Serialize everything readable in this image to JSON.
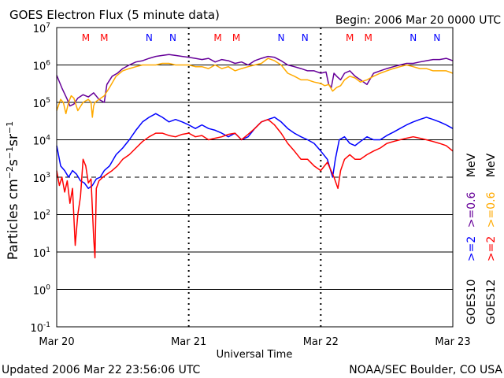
{
  "header": {
    "title": "GOES Electron Flux (5 minute data)",
    "begin": "Begin: 2006 Mar 20 0000 UTC"
  },
  "footer": {
    "updated": "Updated 2006 Mar 22 23:56:06 UTC",
    "credit": "NOAA/SEC Boulder, CO USA"
  },
  "colors": {
    "goes10_2mev": "#0000ff",
    "goes12_2mev": "#ff0000",
    "goes10_06mev": "#660099",
    "goes12_06mev": "#ffaa00",
    "marker_m": "#ff0000",
    "marker_n": "#0000ff"
  },
  "legend": {
    "goes10": {
      "prefix": "GOES10",
      "e2": ">=2",
      "e06": ">=0.6",
      "unit": "MeV"
    },
    "goes12": {
      "prefix": "GOES12",
      "e2": ">=2",
      "e06": ">=0.6",
      "unit": "MeV"
    }
  },
  "markers": [
    {
      "label": "M",
      "day": 0.22
    },
    {
      "label": "M",
      "day": 0.36
    },
    {
      "label": "N",
      "day": 0.7
    },
    {
      "label": "N",
      "day": 0.88
    },
    {
      "label": "M",
      "day": 1.22
    },
    {
      "label": "M",
      "day": 1.36
    },
    {
      "label": "N",
      "day": 1.7
    },
    {
      "label": "N",
      "day": 1.88
    },
    {
      "label": "M",
      "day": 2.22
    },
    {
      "label": "M",
      "day": 2.36
    },
    {
      "label": "N",
      "day": 2.7
    },
    {
      "label": "N",
      "day": 2.88
    }
  ],
  "chart_data": {
    "type": "line",
    "xlabel": "Universal Time",
    "ylabel": "Particles cm-2s-1sr-1",
    "x_unit": "days since 2006 Mar 20 0000 UTC",
    "xlim": [
      0,
      3
    ],
    "ylim_log10": [
      -1,
      7
    ],
    "y_log_scale": true,
    "x_ticks": [
      {
        "label": "Mar 20",
        "day": 0
      },
      {
        "label": "Mar 21",
        "day": 1
      },
      {
        "label": "Mar 22",
        "day": 2
      },
      {
        "label": "Mar 23",
        "day": 3
      }
    ],
    "y_ticks": [
      {
        "base": "10",
        "exp": "-1",
        "log": -1
      },
      {
        "base": "10",
        "exp": "0",
        "log": 0
      },
      {
        "base": "10",
        "exp": "1",
        "log": 1
      },
      {
        "base": "10",
        "exp": "2",
        "log": 2
      },
      {
        "base": "10",
        "exp": "3",
        "log": 3
      },
      {
        "base": "10",
        "exp": "4",
        "log": 4
      },
      {
        "base": "10",
        "exp": "5",
        "log": 5
      },
      {
        "base": "10",
        "exp": "6",
        "log": 6
      },
      {
        "base": "10",
        "exp": "7",
        "log": 7
      }
    ],
    "threshold_log": 3,
    "series": [
      {
        "name": "GOES10 >=0.6 MeV",
        "color": "#660099",
        "x": [
          0,
          0.04,
          0.08,
          0.1,
          0.13,
          0.16,
          0.2,
          0.24,
          0.28,
          0.32,
          0.36,
          0.38,
          0.42,
          0.46,
          0.5,
          0.55,
          0.6,
          0.65,
          0.7,
          0.75,
          0.8,
          0.85,
          0.9,
          0.95,
          1.0,
          1.05,
          1.1,
          1.15,
          1.2,
          1.25,
          1.3,
          1.35,
          1.4,
          1.45,
          1.5,
          1.55,
          1.6,
          1.65,
          1.7,
          1.75,
          1.8,
          1.85,
          1.9,
          1.95,
          2.0,
          2.04,
          2.06,
          2.08,
          2.1,
          2.12,
          2.15,
          2.18,
          2.22,
          2.26,
          2.3,
          2.35,
          2.4,
          2.45,
          2.5,
          2.55,
          2.6,
          2.65,
          2.7,
          2.75,
          2.8,
          2.85,
          2.9,
          2.95,
          3.0
        ],
        "y": [
          530000.0,
          240000.0,
          120000.0,
          80000.0,
          90000.0,
          130000.0,
          160000.0,
          140000.0,
          180000.0,
          120000.0,
          100000.0,
          300000.0,
          500000.0,
          600000.0,
          800000.0,
          1000000.0,
          1200000.0,
          1300000.0,
          1500000.0,
          1700000.0,
          1800000.0,
          1900000.0,
          1800000.0,
          1700000.0,
          1600000.0,
          1500000.0,
          1400000.0,
          1500000.0,
          1200000.0,
          1400000.0,
          1300000.0,
          1100000.0,
          1200000.0,
          1000000.0,
          1300000.0,
          1500000.0,
          1700000.0,
          1600000.0,
          1300000.0,
          1000000.0,
          900000.0,
          800000.0,
          700000.0,
          700000.0,
          600000.0,
          650000.0,
          300000.0,
          250000.0,
          600000.0,
          500000.0,
          400000.0,
          600000.0,
          700000.0,
          500000.0,
          400000.0,
          300000.0,
          600000.0,
          700000.0,
          800000.0,
          900000.0,
          1000000.0,
          1100000.0,
          1100000.0,
          1200000.0,
          1300000.0,
          1400000.0,
          1400000.0,
          1500000.0,
          1300000.0
        ]
      },
      {
        "name": "GOES12 >=0.6 MeV",
        "color": "#ffaa00",
        "x": [
          0,
          0.03,
          0.05,
          0.07,
          0.09,
          0.11,
          0.13,
          0.16,
          0.2,
          0.24,
          0.26,
          0.27,
          0.28,
          0.29,
          0.32,
          0.36,
          0.4,
          0.45,
          0.5,
          0.55,
          0.6,
          0.65,
          0.7,
          0.75,
          0.8,
          0.85,
          0.9,
          0.95,
          1.0,
          1.05,
          1.1,
          1.15,
          1.2,
          1.25,
          1.3,
          1.35,
          1.4,
          1.45,
          1.5,
          1.55,
          1.6,
          1.65,
          1.7,
          1.75,
          1.8,
          1.85,
          1.9,
          1.95,
          2.0,
          2.03,
          2.06,
          2.09,
          2.12,
          2.15,
          2.18,
          2.22,
          2.26,
          2.3,
          2.35,
          2.4,
          2.45,
          2.5,
          2.55,
          2.6,
          2.65,
          2.7,
          2.75,
          2.8,
          2.85,
          2.9,
          2.95,
          3.0
        ],
        "y": [
          60000.0,
          120000.0,
          100000.0,
          50000.0,
          100000.0,
          150000.0,
          130000.0,
          60000.0,
          100000.0,
          120000.0,
          100000.0,
          40000.0,
          80000.0,
          100000.0,
          120000.0,
          150000.0,
          250000.0,
          500000.0,
          700000.0,
          800000.0,
          900000.0,
          1000000.0,
          1000000.0,
          1000000.0,
          1100000.0,
          1100000.0,
          1000000.0,
          1000000.0,
          1000000.0,
          900000.0,
          900000.0,
          800000.0,
          1000000.0,
          800000.0,
          900000.0,
          700000.0,
          800000.0,
          900000.0,
          1000000.0,
          1100000.0,
          1500000.0,
          1300000.0,
          1000000.0,
          600000.0,
          500000.0,
          400000.0,
          400000.0,
          350000.0,
          320000.0,
          280000.0,
          300000.0,
          200000.0,
          250000.0,
          280000.0,
          400000.0,
          500000.0,
          450000.0,
          350000.0,
          400000.0,
          500000.0,
          600000.0,
          700000.0,
          800000.0,
          900000.0,
          1000000.0,
          900000.0,
          800000.0,
          800000.0,
          700000.0,
          700000.0,
          700000.0,
          600000.0
        ]
      },
      {
        "name": "GOES10 >=2 MeV",
        "color": "#0000ff",
        "x": [
          0,
          0.03,
          0.06,
          0.09,
          0.12,
          0.15,
          0.18,
          0.21,
          0.24,
          0.27,
          0.3,
          0.33,
          0.36,
          0.4,
          0.45,
          0.5,
          0.55,
          0.6,
          0.65,
          0.7,
          0.75,
          0.8,
          0.85,
          0.9,
          0.95,
          1.0,
          1.05,
          1.1,
          1.15,
          1.2,
          1.25,
          1.3,
          1.35,
          1.4,
          1.45,
          1.5,
          1.55,
          1.6,
          1.65,
          1.7,
          1.75,
          1.8,
          1.85,
          1.9,
          1.95,
          2.0,
          2.05,
          2.09,
          2.11,
          2.14,
          2.18,
          2.22,
          2.26,
          2.3,
          2.35,
          2.4,
          2.45,
          2.5,
          2.55,
          2.6,
          2.65,
          2.7,
          2.75,
          2.8,
          2.85,
          2.9,
          2.95,
          3.0
        ],
        "y": [
          7000.0,
          2000.0,
          1500.0,
          1000.0,
          1500.0,
          1200.0,
          800.0,
          700.0,
          500.0,
          600.0,
          900.0,
          1000.0,
          1500.0,
          2000.0,
          4000.0,
          6000.0,
          10000.0,
          18000.0,
          30000.0,
          40000.0,
          50000.0,
          40000.0,
          30000.0,
          35000.0,
          30000.0,
          25000.0,
          20000.0,
          25000.0,
          20000.0,
          18000.0,
          15000.0,
          12000.0,
          15000.0,
          10000.0,
          12000.0,
          20000.0,
          30000.0,
          35000.0,
          40000.0,
          30000.0,
          20000.0,
          15000.0,
          12000.0,
          10000.0,
          8000.0,
          5000.0,
          3000.0,
          1000.0,
          3000.0,
          10000.0,
          12000.0,
          8000.0,
          7000.0,
          9000.0,
          12000.0,
          10000.0,
          10000.0,
          13000.0,
          16000.0,
          20000.0,
          25000.0,
          30000.0,
          35000.0,
          40000.0,
          35000.0,
          30000.0,
          25000.0,
          20000.0
        ]
      },
      {
        "name": "GOES12 >=2 MeV",
        "color": "#ff0000",
        "x": [
          0,
          0.02,
          0.04,
          0.06,
          0.08,
          0.1,
          0.12,
          0.14,
          0.16,
          0.18,
          0.2,
          0.22,
          0.24,
          0.26,
          0.28,
          0.29,
          0.3,
          0.32,
          0.35,
          0.38,
          0.42,
          0.46,
          0.5,
          0.55,
          0.6,
          0.65,
          0.7,
          0.75,
          0.8,
          0.85,
          0.9,
          0.95,
          1.0,
          1.05,
          1.1,
          1.15,
          1.2,
          1.25,
          1.3,
          1.35,
          1.4,
          1.45,
          1.5,
          1.55,
          1.6,
          1.65,
          1.7,
          1.75,
          1.8,
          1.85,
          1.9,
          1.95,
          2.0,
          2.05,
          2.1,
          2.13,
          2.15,
          2.18,
          2.22,
          2.26,
          2.3,
          2.35,
          2.4,
          2.45,
          2.5,
          2.55,
          2.6,
          2.65,
          2.7,
          2.75,
          2.8,
          2.85,
          2.9,
          2.95,
          3.0
        ],
        "y": [
          1500.0,
          600.0,
          1000.0,
          400.0,
          800.0,
          200.0,
          500.0,
          15,
          100.0,
          300.0,
          3000.0,
          2000.0,
          700.0,
          900.0,
          25,
          7,
          500.0,
          800.0,
          1000.0,
          1200.0,
          1500.0,
          2000.0,
          3000.0,
          4000.0,
          6000.0,
          9000.0,
          12000.0,
          15000.0,
          15000.0,
          13000.0,
          12000.0,
          14000.0,
          15000.0,
          12000.0,
          13000.0,
          10000.0,
          11000.0,
          12000.0,
          14000.0,
          15000.0,
          10000.0,
          14000.0,
          20000.0,
          30000.0,
          35000.0,
          25000.0,
          15000.0,
          8000.0,
          5000.0,
          3000.0,
          3000.0,
          2000.0,
          1500.0,
          2500.0,
          1000.0,
          500.0,
          1500.0,
          3000.0,
          4000.0,
          3000.0,
          3000.0,
          4000.0,
          5000.0,
          6000.0,
          8000.0,
          9000.0,
          10000.0,
          11000.0,
          12000.0,
          11000.0,
          10000.0,
          9000.0,
          8000.0,
          7000.0,
          5000.0
        ]
      }
    ]
  }
}
